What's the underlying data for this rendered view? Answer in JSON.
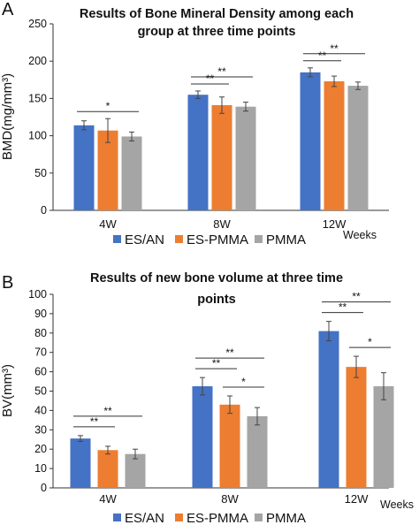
{
  "chart_data": [
    {
      "type": "bar",
      "panel_label": "A",
      "title": [
        "Results of Bone Mineral Density among each",
        "group at three time points"
      ],
      "ylabel": "BMD(mg/mm³)",
      "xlabel": "Weeks",
      "ylim": [
        0,
        250
      ],
      "yticks": [
        0,
        50,
        100,
        150,
        200,
        250
      ],
      "grid": false,
      "legend_position": "bottom",
      "categories": [
        "4W",
        "8W",
        "12W"
      ],
      "series": [
        {
          "name": "ES/AN",
          "color": "#4472C4",
          "values": [
            114,
            155,
            185
          ],
          "errors": [
            6,
            5,
            6
          ]
        },
        {
          "name": "ES-PMMA",
          "color": "#ED7D31",
          "values": [
            107,
            141,
            173
          ],
          "errors": [
            16,
            11,
            7
          ]
        },
        {
          "name": "PMMA",
          "color": "#A5A5A5",
          "values": [
            99,
            139,
            167
          ],
          "errors": [
            6,
            6,
            5
          ]
        }
      ],
      "significance": [
        {
          "label": "*",
          "category": 0,
          "from": 0,
          "to": 2,
          "level": 1
        },
        {
          "label": "**",
          "category": 1,
          "from": 0,
          "to": 1,
          "level": 1
        },
        {
          "label": "**",
          "category": 1,
          "from": 0,
          "to": 2,
          "level": 2
        },
        {
          "label": "**",
          "category": 2,
          "from": 0,
          "to": 1,
          "level": 1
        },
        {
          "label": "**",
          "category": 2,
          "from": 0,
          "to": 2,
          "level": 2
        }
      ]
    },
    {
      "type": "bar",
      "panel_label": "B",
      "title": [
        "Results of new bone volume at three time",
        "points"
      ],
      "ylabel": "BV(mm³)",
      "xlabel": "Weeks",
      "ylim": [
        0,
        100
      ],
      "yticks": [
        0,
        10,
        20,
        30,
        40,
        50,
        60,
        70,
        80,
        90,
        100
      ],
      "grid": false,
      "legend_position": "bottom",
      "categories": [
        "4W",
        "8W",
        "12W"
      ],
      "series": [
        {
          "name": "ES/AN",
          "color": "#4472C4",
          "values": [
            25.5,
            52.5,
            81
          ],
          "errors": [
            1.5,
            4.5,
            5
          ]
        },
        {
          "name": "ES-PMMA",
          "color": "#ED7D31",
          "values": [
            19.5,
            43,
            62.5
          ],
          "errors": [
            2,
            4.5,
            5.5
          ]
        },
        {
          "name": "PMMA",
          "color": "#A5A5A5",
          "values": [
            17.5,
            37,
            52.5
          ],
          "errors": [
            2.5,
            4.5,
            7
          ]
        }
      ],
      "significance": [
        {
          "label": "**",
          "category": 0,
          "from": 0,
          "to": 1,
          "level": 1
        },
        {
          "label": "**",
          "category": 0,
          "from": 0,
          "to": 2,
          "level": 2
        },
        {
          "label": "**",
          "category": 1,
          "from": 0,
          "to": 1,
          "level": 1
        },
        {
          "label": "*",
          "category": 1,
          "from": 1,
          "to": 2,
          "level": 1
        },
        {
          "label": "**",
          "category": 1,
          "from": 0,
          "to": 2,
          "level": 2
        },
        {
          "label": "**",
          "category": 2,
          "from": 0,
          "to": 1,
          "level": 1
        },
        {
          "label": "*",
          "category": 2,
          "from": 1,
          "to": 2,
          "level": 1
        },
        {
          "label": "**",
          "category": 2,
          "from": 0,
          "to": 2,
          "level": 2
        }
      ]
    }
  ]
}
